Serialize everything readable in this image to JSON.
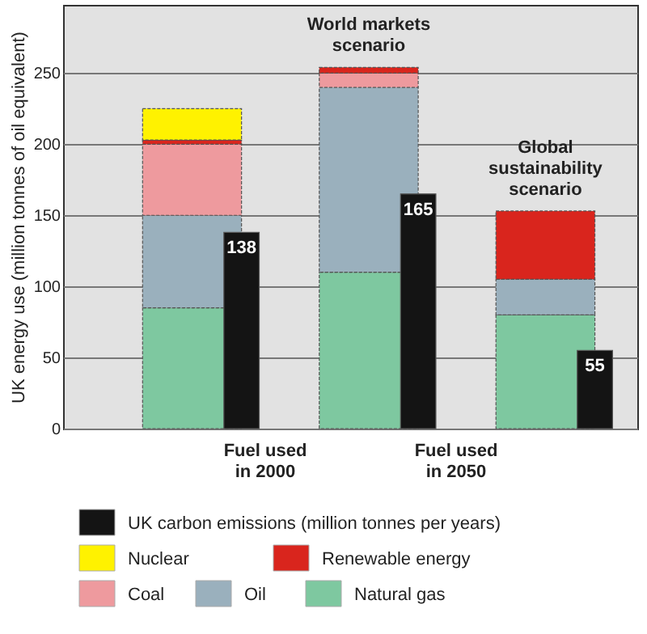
{
  "chart_data": {
    "type": "bar",
    "ylabel": "UK energy use (million tonnes of oil equivalent)",
    "categories": [
      null,
      "World markets scenario",
      "Global sustainability scenario"
    ],
    "series": [
      {
        "name": "Natural gas",
        "color": "#7ec8a0",
        "values": [
          85,
          110,
          80
        ],
        "base": [
          0,
          0,
          0
        ]
      },
      {
        "name": "Oil",
        "color": "#9ab0bd",
        "values": [
          65,
          130,
          25
        ],
        "base": [
          85,
          110,
          80
        ]
      },
      {
        "name": "Coal",
        "color": "#ee9a9e",
        "values": [
          50,
          10,
          null
        ],
        "base": [
          150,
          240,
          null
        ]
      },
      {
        "name": "Renewable energy",
        "color": "#d9251d",
        "values": [
          3,
          4,
          48
        ],
        "base": [
          200,
          250,
          105
        ]
      },
      {
        "name": "Nuclear",
        "color": "#fff200",
        "values": [
          22,
          null,
          null
        ],
        "base": [
          203,
          null,
          null
        ]
      },
      {
        "name": "UK carbon emissions (million tonnes per years)",
        "color": "#141414",
        "values": [
          138,
          165,
          55
        ],
        "value_labels": [
          "138",
          "165",
          "55"
        ]
      }
    ],
    "ylim": [
      0,
      298
    ],
    "yticks": [
      0,
      50,
      100,
      150,
      200,
      250
    ],
    "grid": "y",
    "legend": "bottom",
    "annotations": [
      "Fuel used in 2000",
      "Fuel used in 2050"
    ]
  }
}
